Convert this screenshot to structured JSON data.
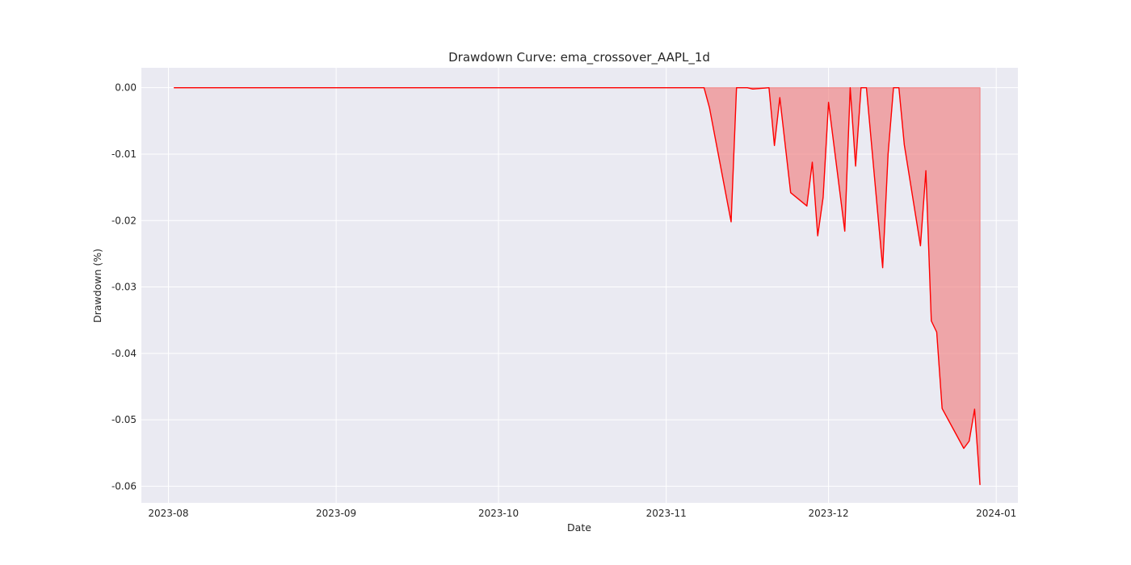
{
  "chart_data": {
    "type": "area",
    "title": "Drawdown Curve: ema_crossover_AAPL_1d",
    "xlabel": "Date",
    "ylabel": "Drawdown (%)",
    "x_ticks": [
      "2023-08",
      "2023-09",
      "2023-10",
      "2023-11",
      "2023-12",
      "2024-01"
    ],
    "x_tick_dates": [
      "2023-08-01",
      "2023-09-01",
      "2023-10-01",
      "2023-11-01",
      "2023-12-01",
      "2024-01-01"
    ],
    "y_ticks": [
      "0.00",
      "-0.01",
      "-0.02",
      "-0.03",
      "-0.04",
      "-0.05",
      "-0.06"
    ],
    "y_tick_values": [
      0,
      -0.01,
      -0.02,
      -0.03,
      -0.04,
      -0.05,
      -0.06
    ],
    "xlim": [
      "2023-07-27",
      "2024-01-05"
    ],
    "ylim": [
      -0.0625,
      0.003
    ],
    "grid": true,
    "background": "#eaeaf2",
    "line_color": "#ff0000",
    "fill_color": "#f08080",
    "series": [
      {
        "x": [
          "2023-08-02",
          "2023-11-08",
          "2023-11-09",
          "2023-11-13",
          "2023-11-14",
          "2023-11-16",
          "2023-11-17",
          "2023-11-20",
          "2023-11-21",
          "2023-11-22",
          "2023-11-24",
          "2023-11-27",
          "2023-11-28",
          "2023-11-29",
          "2023-11-30",
          "2023-12-01",
          "2023-12-04",
          "2023-12-05",
          "2023-12-06",
          "2023-12-07",
          "2023-12-08",
          "2023-12-11",
          "2023-12-12",
          "2023-12-13",
          "2023-12-14",
          "2023-12-15",
          "2023-12-18",
          "2023-12-19",
          "2023-12-20",
          "2023-12-21",
          "2023-12-22",
          "2023-12-26",
          "2023-12-27",
          "2023-12-28",
          "2023-12-29"
        ],
        "y": [
          0,
          0,
          -0.003,
          -0.0202,
          0,
          0,
          -0.0002,
          0,
          -0.0087,
          -0.0015,
          -0.0158,
          -0.0178,
          -0.0112,
          -0.0223,
          -0.0165,
          -0.0022,
          -0.0216,
          0,
          -0.0118,
          0,
          0,
          -0.0271,
          -0.01,
          0,
          0,
          -0.0086,
          -0.0238,
          -0.0125,
          -0.0351,
          -0.0368,
          -0.0483,
          -0.0543,
          -0.0532,
          -0.0484,
          -0.0598
        ]
      }
    ]
  }
}
